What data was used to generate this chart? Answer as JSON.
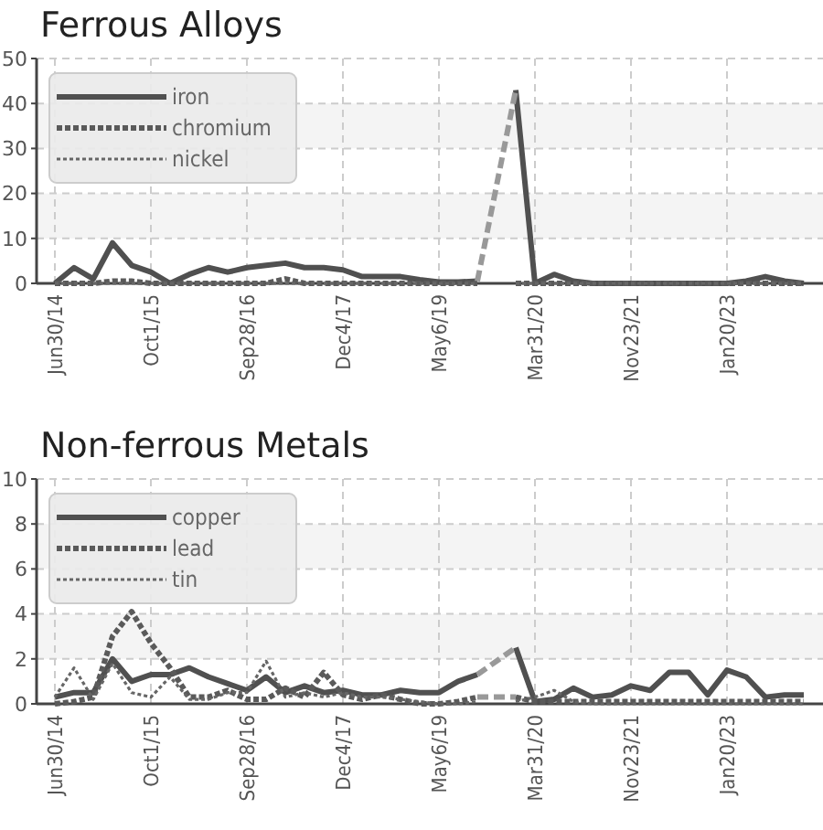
{
  "chart_data": [
    {
      "type": "line",
      "title": "Ferrous Alloys",
      "categories": [
        "Jun30/14",
        null,
        null,
        null,
        null,
        "Oct1/15",
        null,
        null,
        null,
        null,
        "Sep28/16",
        null,
        null,
        null,
        null,
        "Dec4/17",
        null,
        null,
        null,
        null,
        "May6/19",
        null,
        null,
        null,
        null,
        "Mar31/20",
        null,
        null,
        null,
        null,
        "Nov23/21",
        null,
        null,
        null,
        null,
        "Jan20/23",
        null,
        null,
        null,
        null
      ],
      "series": [
        {
          "name": "iron",
          "color": "#505050",
          "line_style": "solid",
          "values": [
            0,
            3.5,
            1,
            9,
            4,
            2.5,
            0,
            2,
            3.5,
            2.5,
            3.5,
            4,
            4.5,
            3.5,
            3.5,
            3,
            1.5,
            1.5,
            1.5,
            0.8,
            0.3,
            0.3,
            0.5,
            null,
            43,
            0,
            2,
            0.5,
            0,
            0,
            0,
            0,
            0,
            0,
            0,
            0,
            0.5,
            1.5,
            0.5,
            0
          ]
        },
        {
          "name": "chromium",
          "color": "#5a5a5a",
          "line_style": "dotted",
          "values": [
            0,
            0,
            0,
            0.5,
            0.5,
            0,
            0,
            0,
            0,
            0,
            0,
            0,
            1,
            0,
            0,
            0,
            0,
            0,
            0,
            0,
            0,
            0,
            0,
            null,
            0,
            0,
            0,
            0,
            0,
            0,
            0,
            0,
            0,
            0,
            0,
            0,
            0,
            0,
            0,
            0
          ]
        },
        {
          "name": "nickel",
          "color": "#666666",
          "line_style": "dotted",
          "values": [
            0,
            0,
            0,
            0,
            0,
            0,
            0,
            0,
            0,
            0,
            0,
            0,
            0,
            0,
            0,
            0,
            0,
            0,
            0,
            0,
            0,
            0,
            0,
            null,
            0,
            0,
            0,
            0,
            0,
            0,
            0,
            0,
            0,
            0,
            0,
            0,
            0,
            0,
            0,
            0
          ]
        },
        {
          "color": "#999999",
          "line_style": "dashed",
          "values": [
            null,
            null,
            null,
            null,
            null,
            null,
            null,
            null,
            null,
            null,
            null,
            null,
            null,
            null,
            null,
            null,
            null,
            null,
            null,
            null,
            null,
            null,
            0.5,
            null,
            43,
            null,
            null,
            null,
            null,
            null,
            null,
            null,
            null,
            null,
            null,
            null,
            null,
            null,
            null,
            null
          ]
        }
      ],
      "ylim": [
        0,
        50
      ],
      "yticks": [
        0,
        10,
        20,
        30,
        40,
        50
      ],
      "grid": true,
      "legend": "top left"
    },
    {
      "type": "line",
      "title": "Non-ferrous Metals",
      "categories": [
        "Jun30/14",
        null,
        null,
        null,
        null,
        "Oct1/15",
        null,
        null,
        null,
        null,
        "Sep28/16",
        null,
        null,
        null,
        null,
        "Dec4/17",
        null,
        null,
        null,
        null,
        "May6/19",
        null,
        null,
        null,
        null,
        "Mar31/20",
        null,
        null,
        null,
        null,
        "Nov23/21",
        null,
        null,
        null,
        null,
        "Jan20/23",
        null,
        null,
        null,
        null
      ],
      "series": [
        {
          "name": "copper",
          "color": "#505050",
          "line_style": "solid",
          "values": [
            0.3,
            0.5,
            0.5,
            2,
            1,
            1.3,
            1.3,
            1.6,
            1.2,
            0.9,
            0.6,
            1.2,
            0.5,
            0.8,
            0.5,
            0.6,
            0.4,
            0.4,
            0.6,
            0.5,
            0.5,
            1,
            1.3,
            null,
            2.5,
            0.1,
            0.2,
            0.7,
            0.3,
            0.4,
            0.8,
            0.6,
            1.4,
            1.4,
            0.4,
            1.5,
            1.2,
            0.3,
            0.4,
            0.4
          ]
        },
        {
          "name": "lead",
          "color": "#5a5a5a",
          "line_style": "dotted",
          "values": [
            0,
            0.1,
            0.3,
            3,
            4.1,
            2.7,
            1.6,
            0.3,
            0.3,
            0.6,
            0.2,
            0.2,
            0.7,
            0.3,
            1.4,
            0.4,
            0.2,
            0.4,
            0.2,
            0,
            0,
            0.1,
            0.3,
            null,
            0.3,
            0.1,
            0.1,
            0.1,
            0.1,
            0.1,
            0.1,
            0.1,
            0.1,
            0.1,
            0.1,
            0.1,
            0.1,
            0.1,
            0.1,
            0.1
          ]
        },
        {
          "name": "tin",
          "color": "#666666",
          "line_style": "dotted",
          "values": [
            0.3,
            1.6,
            0.2,
            1.8,
            0.5,
            0.3,
            1.2,
            0.2,
            0.2,
            0.5,
            0.5,
            1.9,
            0.3,
            0.5,
            0.3,
            0.5,
            0.3,
            0.3,
            0.2,
            0.1,
            0,
            0,
            0.1,
            null,
            0.1,
            0.3,
            0.6,
            0.1,
            0,
            0,
            0,
            0,
            0,
            0,
            0,
            0,
            0,
            0,
            0,
            0
          ]
        },
        {
          "color": "#999999",
          "line_style": "dashed",
          "values": [
            null,
            null,
            null,
            null,
            null,
            null,
            null,
            null,
            null,
            null,
            null,
            null,
            null,
            null,
            null,
            null,
            null,
            null,
            null,
            null,
            null,
            null,
            1.3,
            null,
            2.5,
            null,
            null,
            null,
            null,
            null,
            null,
            null,
            null,
            null,
            null,
            null,
            null,
            null,
            null,
            null
          ]
        },
        {
          "color": "#999999",
          "line_style": "dashed",
          "values": [
            null,
            null,
            null,
            null,
            null,
            null,
            null,
            null,
            null,
            null,
            null,
            null,
            null,
            null,
            null,
            null,
            null,
            null,
            null,
            null,
            null,
            null,
            0.3,
            null,
            0.3,
            null,
            null,
            null,
            null,
            null,
            null,
            null,
            null,
            null,
            null,
            null,
            null,
            null,
            null,
            null
          ]
        }
      ],
      "ylim": [
        0,
        10
      ],
      "yticks": [
        0,
        2,
        4,
        6,
        8,
        10
      ],
      "grid": true,
      "legend": "top left"
    }
  ]
}
